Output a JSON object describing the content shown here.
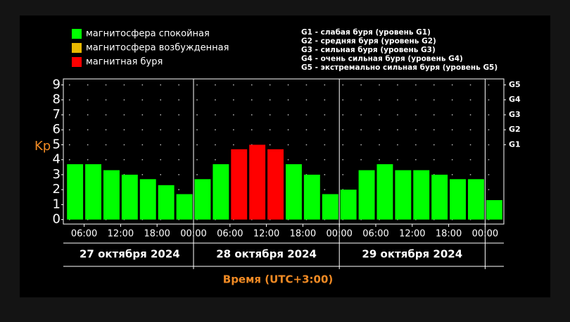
{
  "chart_data": {
    "type": "bar",
    "legend": [
      {
        "name": "магнитосфера спокойная",
        "color": "#00ff00"
      },
      {
        "name": "магнитосфера возбужденная",
        "color": "#e8b800"
      },
      {
        "name": "магнитная буря",
        "color": "#ff0000"
      }
    ],
    "notes": [
      "G1 - слабая буря (уровень G1)",
      "G2 - средняя буря (уровень G2)",
      "G3 - сильная буря (уровень G3)",
      "G4 - очень сильная буря (уровень G4)",
      "G5 - экстремально сильная буря (уровень G5)"
    ],
    "y_label": "Kp",
    "x_label": "Время (UTC+3:00)",
    "values": [
      3.7,
      3.7,
      3.3,
      3.0,
      2.7,
      2.3,
      1.7,
      2.7,
      3.7,
      4.7,
      5.0,
      4.7,
      3.7,
      3.0,
      1.7,
      2.0,
      3.3,
      3.7,
      3.3,
      3.3,
      3.0,
      2.7,
      2.7,
      1.3
    ],
    "colors": [
      "#00ff00",
      "#00ff00",
      "#00ff00",
      "#00ff00",
      "#00ff00",
      "#00ff00",
      "#00ff00",
      "#00ff00",
      "#00ff00",
      "#ff0000",
      "#ff0000",
      "#ff0000",
      "#00ff00",
      "#00ff00",
      "#00ff00",
      "#00ff00",
      "#00ff00",
      "#00ff00",
      "#00ff00",
      "#00ff00",
      "#00ff00",
      "#00ff00",
      "#00ff00",
      "#00ff00"
    ],
    "xtick_labels": [
      "06:00",
      "12:00",
      "18:00",
      "00:00",
      "06:00",
      "12:00",
      "18:00",
      "00:00",
      "06:00",
      "12:00",
      "18:00",
      "00:00"
    ],
    "days": [
      "27 октября 2024",
      "28 октября 2024",
      "29 октября 2024"
    ],
    "ylim": [
      -0.3,
      9.4
    ],
    "yticks": [
      0,
      1,
      2,
      3,
      4,
      5,
      6,
      7,
      8,
      9
    ],
    "y2lim": [
      -0.3,
      9.4
    ],
    "y2ticks": [
      {
        "value": 5,
        "label": "G1"
      },
      {
        "value": 6,
        "label": "G2"
      },
      {
        "value": 7,
        "label": "G3"
      },
      {
        "value": 8,
        "label": "G4"
      },
      {
        "value": 9,
        "label": "G5"
      }
    ],
    "grid": true
  }
}
